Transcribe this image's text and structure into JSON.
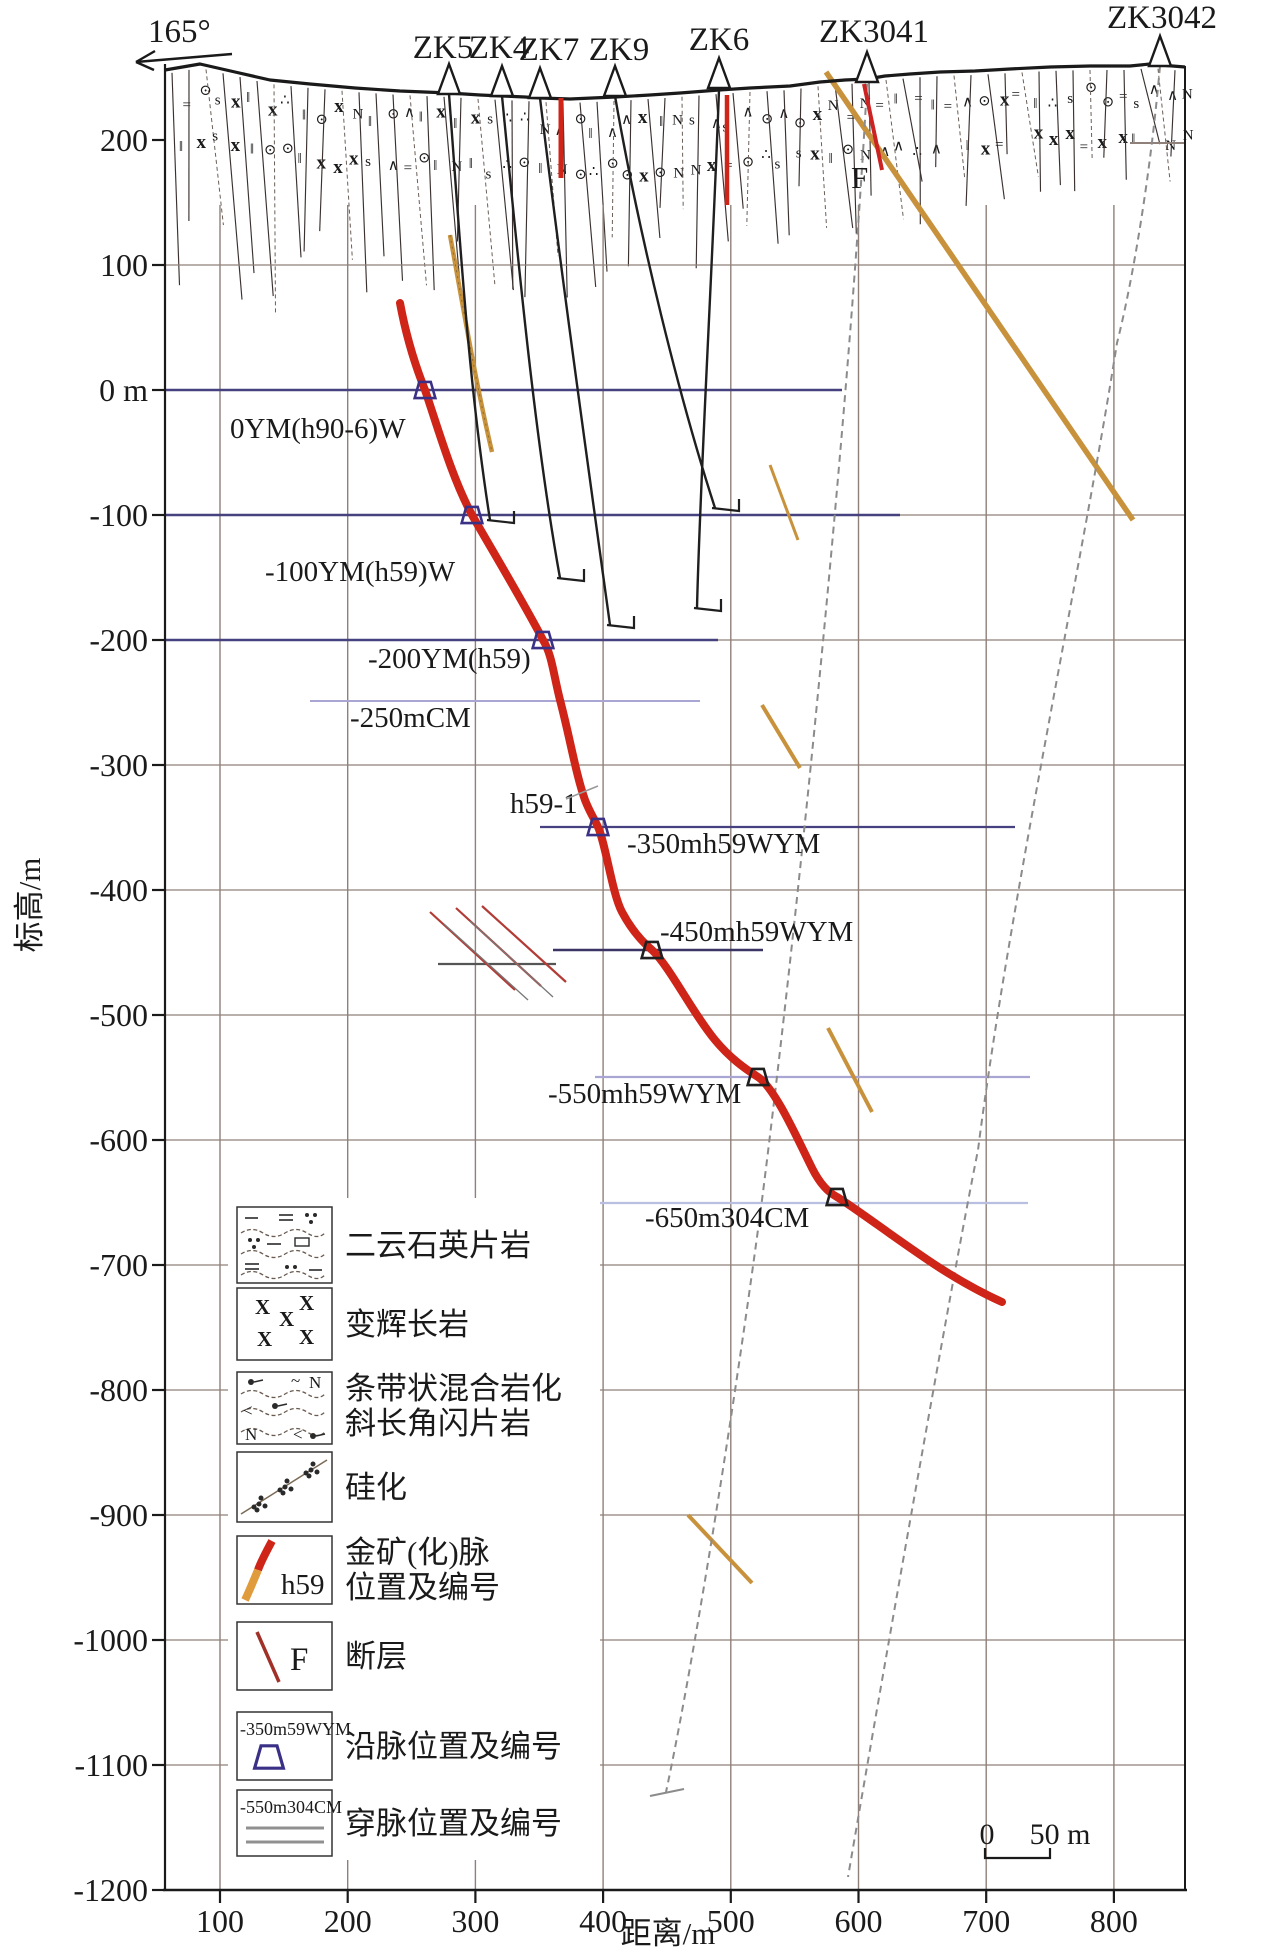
{
  "direction_label": "165°",
  "fault": {
    "label": "F"
  },
  "vein": {
    "annotation": "h59-1"
  },
  "boreholes": {
    "items": [
      {
        "label": "ZK5"
      },
      {
        "label": "ZK4"
      },
      {
        "label": "ZK7"
      },
      {
        "label": "ZK9"
      },
      {
        "label": "ZK6"
      },
      {
        "label": "ZK3041"
      },
      {
        "label": "ZK3042"
      }
    ]
  },
  "levels": [
    {
      "label": "0YM(h90-6)W",
      "elevation_m": 0
    },
    {
      "label": "-100YM(h59)W",
      "elevation_m": -100
    },
    {
      "label": "-200YM(h59)",
      "elevation_m": -200
    },
    {
      "label": "-250mCM",
      "elevation_m": -250
    },
    {
      "label": "h59-1"
    },
    {
      "label": "-350mh59WYM",
      "elevation_m": -350
    },
    {
      "label": "-450mh59WYM",
      "elevation_m": -450
    },
    {
      "label": "-550mh59WYM",
      "elevation_m": -550
    },
    {
      "label": "-650m304CM",
      "elevation_m": -650
    }
  ],
  "y_axis": {
    "title": "标高/m",
    "ticks": [
      "200",
      "100",
      "0 m",
      "-100",
      "-200",
      "-300",
      "-400",
      "-500",
      "-600",
      "-700",
      "-800",
      "-900",
      "-1000",
      "-1100",
      "-1200"
    ]
  },
  "x_axis": {
    "title": "距离/m",
    "ticks": [
      "100",
      "200",
      "300",
      "400",
      "500",
      "600",
      "700",
      "800"
    ]
  },
  "scale_bar": {
    "zero": "0",
    "label": "50 m"
  },
  "legend": {
    "items": [
      {
        "symbol": "mica-quartz-schist-pattern",
        "label": "二云石英片岩"
      },
      {
        "symbol": "metagabbro-pattern",
        "label": "变辉长岩"
      },
      {
        "symbol": "banded-migmatite-pattern",
        "label": "条带状混合岩化",
        "label2": "斜长角闪片岩"
      },
      {
        "symbol": "silicification-pattern",
        "label": "硅化"
      },
      {
        "symbol": "gold-vein-symbol",
        "label": "金矿(化)脉",
        "label2": "位置及编号",
        "vein_id": "h59"
      },
      {
        "symbol": "fault-symbol",
        "label": "断层",
        "fault_id": "F"
      },
      {
        "symbol": "drift-symbol",
        "label": "沿脉位置及编号",
        "code": "-350m59WYM"
      },
      {
        "symbol": "crosscut-symbol",
        "label": "穿脉位置及编号",
        "code": "-550m304CM"
      }
    ]
  },
  "colors": {
    "vein_red": "#cf2418",
    "fault_tan": "#c8923c",
    "level_dark": "#46427f",
    "level_light": "#a9a6d4",
    "grid": "#8f8079",
    "drift_blue": "#4a3f9f"
  },
  "surface_band_glyphs": [
    "x",
    "∧",
    "N",
    "∴",
    "‖",
    "=",
    "s",
    "⊙"
  ]
}
